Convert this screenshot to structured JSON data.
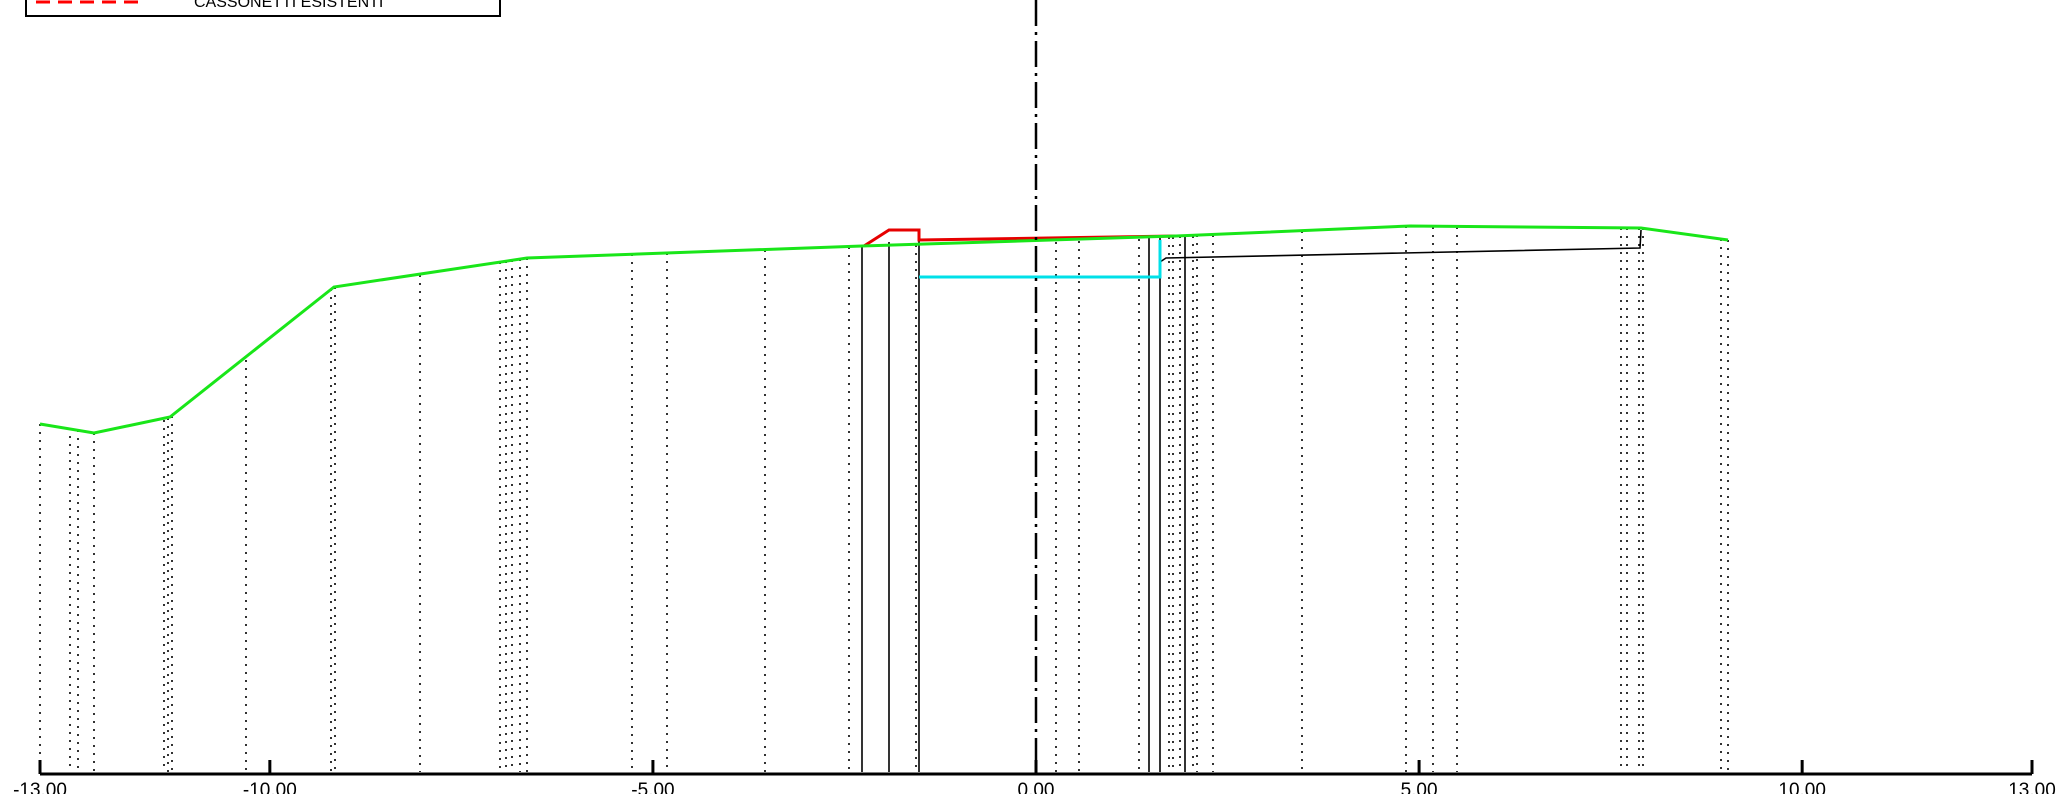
{
  "legend": {
    "items": [
      {
        "label": "CASSONETTI ESISTENTI",
        "color": "#ff0000",
        "style": "dashed"
      }
    ]
  },
  "colors": {
    "terrain": "#19e619",
    "existing_structure": "#e60000",
    "cyan_box": "#00e0e8",
    "black": "#000000"
  },
  "axis": {
    "ticks": [
      {
        "value": -13,
        "label": "-13.00"
      },
      {
        "value": -10,
        "label": "-10.00"
      },
      {
        "value": -5,
        "label": "-5.00"
      },
      {
        "value": 0,
        "label": "0.00"
      },
      {
        "value": 5,
        "label": "5.00"
      },
      {
        "value": 10,
        "label": "10.00"
      },
      {
        "value": 13,
        "label": "13.00"
      }
    ]
  }
}
